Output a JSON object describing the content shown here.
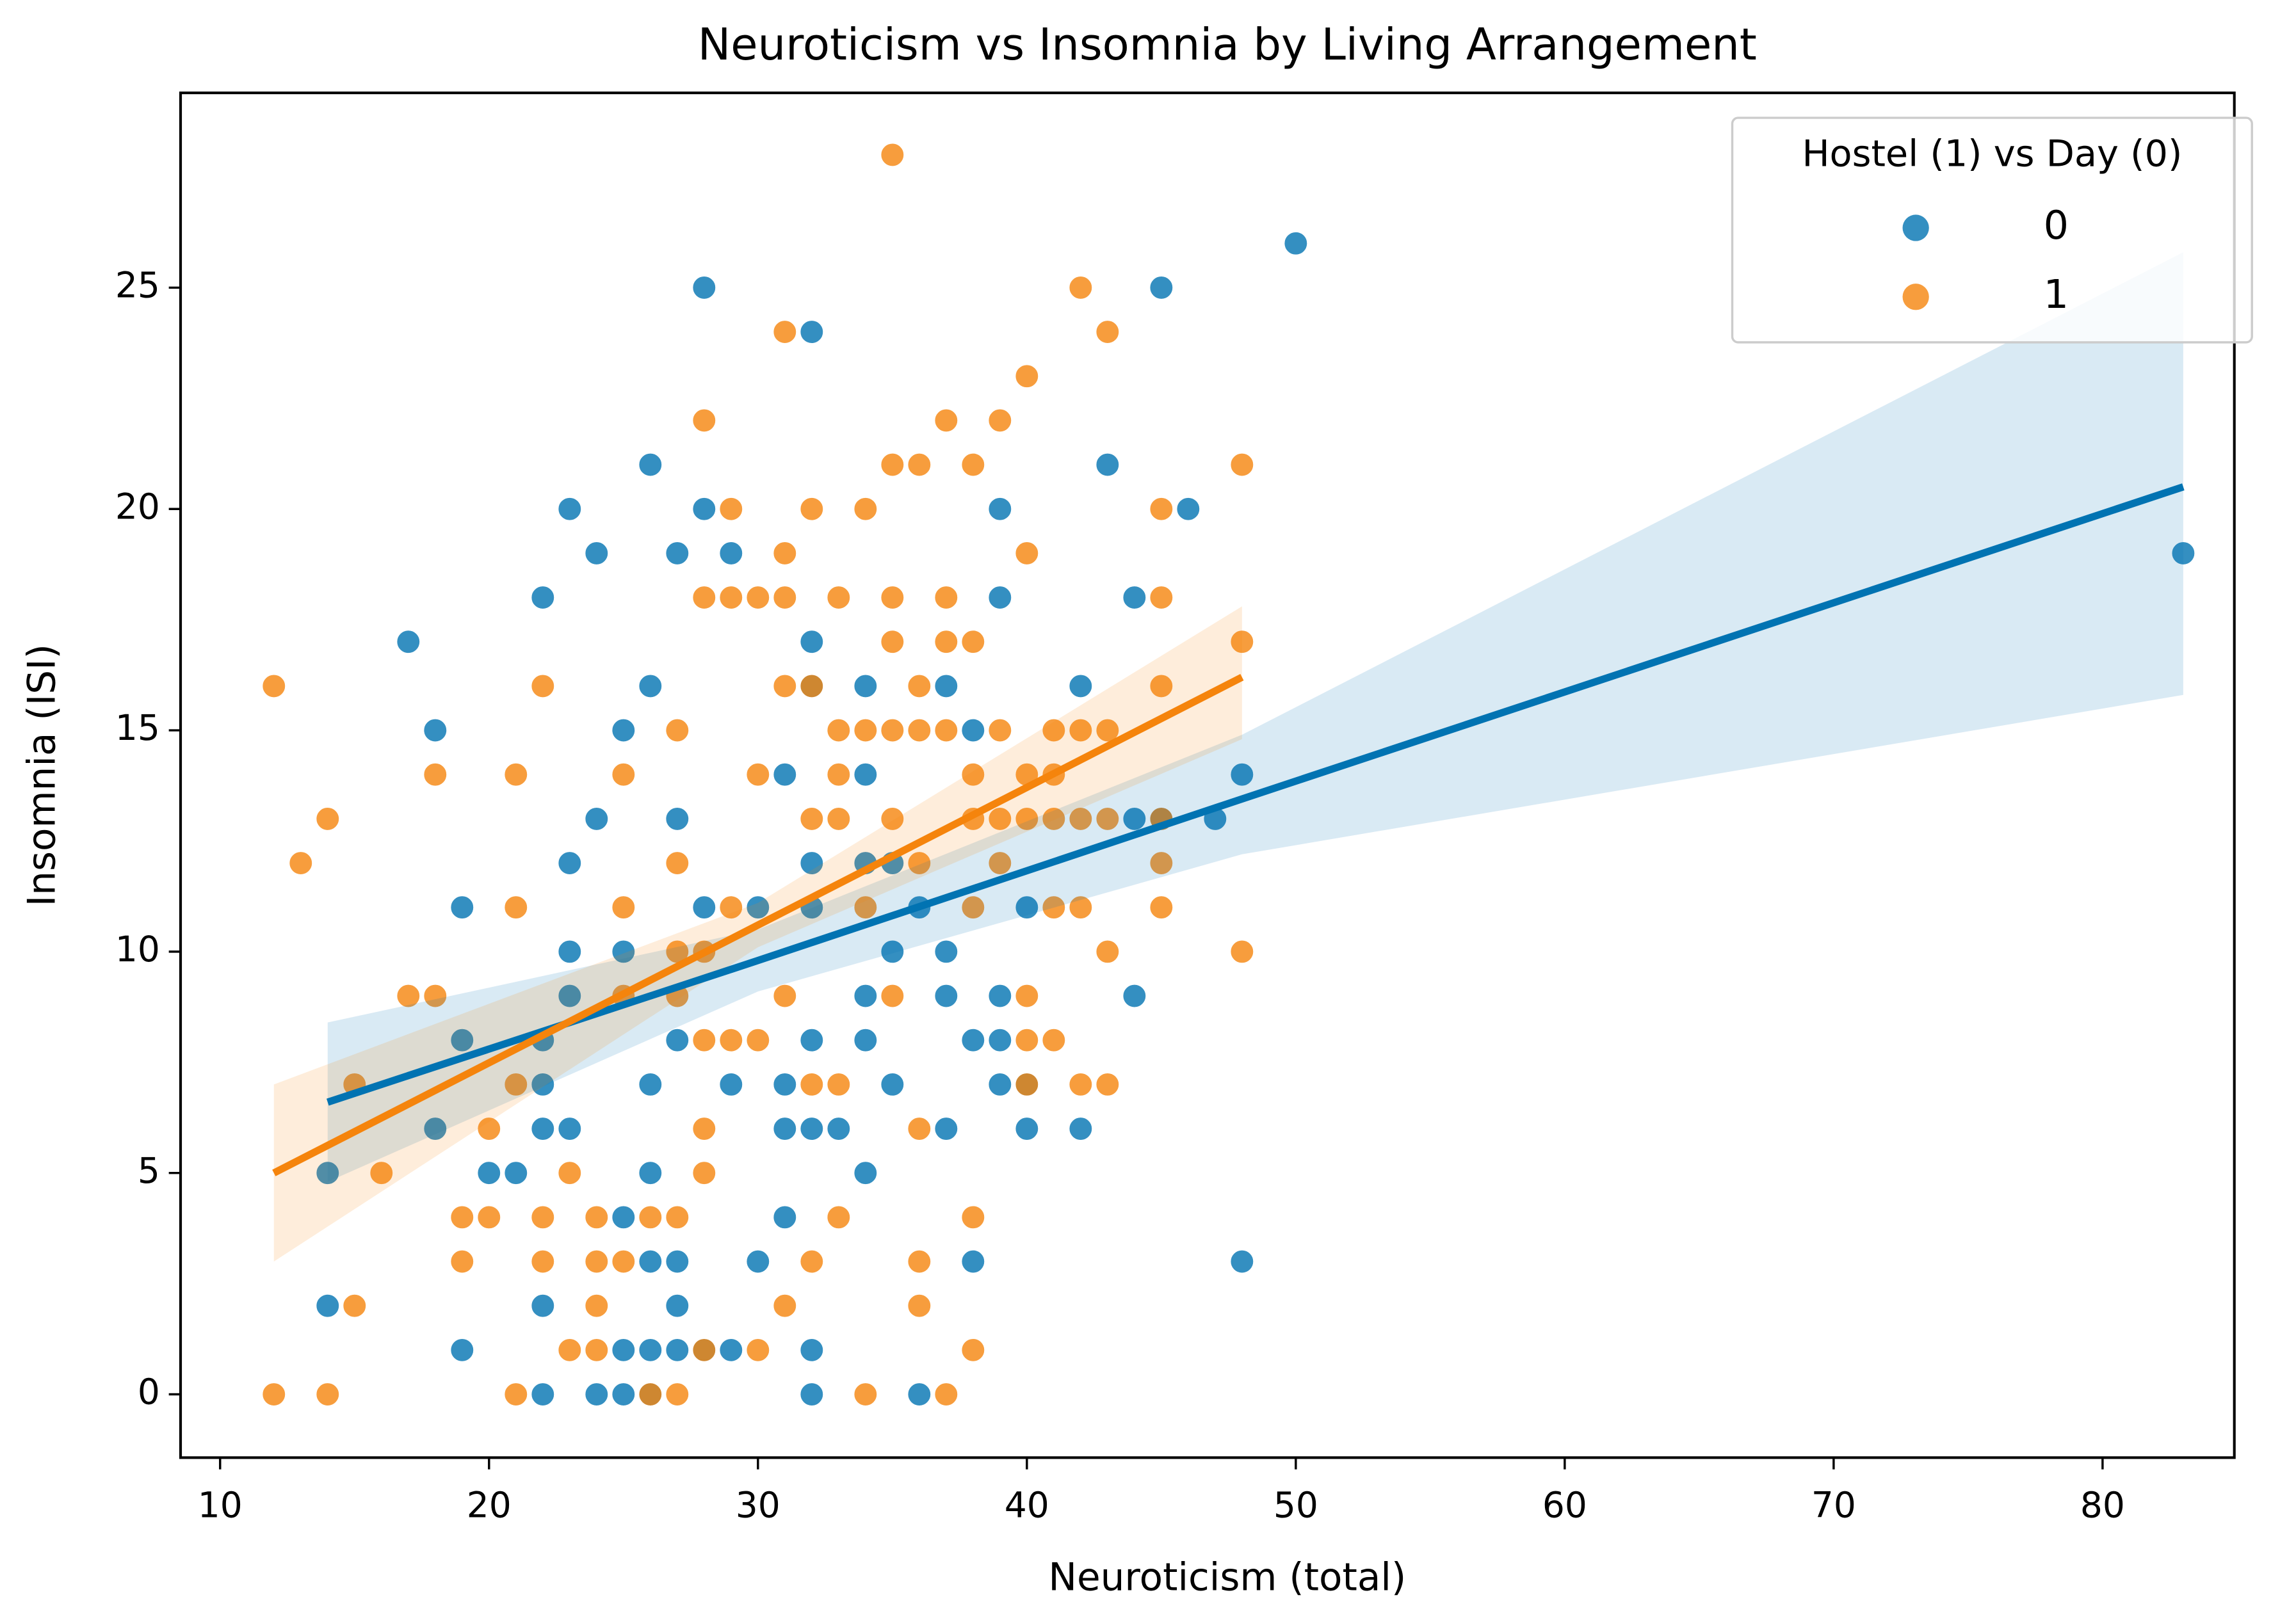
{
  "chart_data": {
    "type": "scatter",
    "title": "Neuroticism vs Insomnia by Living Arrangement",
    "x_label": "Neuroticism (total)",
    "y_label": "Insomnia (ISI)",
    "legend_title": "Hostel (1) vs Day (0)",
    "legend_position": "upper right",
    "xlim": [
      8.53,
      84.9
    ],
    "ylim": [
      -1.43,
      29.4
    ],
    "xticks": [
      10,
      20,
      30,
      40,
      50,
      60,
      70,
      80
    ],
    "yticks": [
      0,
      5,
      10,
      15,
      20,
      25
    ],
    "grid": false,
    "series": [
      {
        "name": "0",
        "color": "#0173b2",
        "x": [
          14,
          14,
          17,
          18,
          18,
          19,
          19,
          19,
          20,
          21,
          22,
          22,
          22,
          22,
          22,
          22,
          23,
          23,
          23,
          23,
          23,
          24,
          24,
          24,
          25,
          25,
          25,
          25,
          25,
          26,
          26,
          26,
          26,
          26,
          26,
          26,
          27,
          27,
          27,
          27,
          27,
          27,
          28,
          28,
          28,
          28,
          29,
          29,
          29,
          30,
          30,
          31,
          31,
          31,
          31,
          32,
          32,
          32,
          32,
          32,
          32,
          32,
          32,
          32,
          33,
          34,
          34,
          34,
          34,
          34,
          34,
          35,
          35,
          35,
          36,
          36,
          37,
          37,
          37,
          37,
          38,
          38,
          38,
          39,
          39,
          39,
          39,
          39,
          40,
          40,
          40,
          42,
          42,
          43,
          44,
          44,
          44,
          45,
          45,
          46,
          47,
          48,
          48,
          50,
          83
        ],
        "values": [
          5,
          2,
          17,
          15,
          6,
          11,
          8,
          1,
          5,
          5,
          18,
          8,
          7,
          6,
          2,
          0,
          20,
          12,
          10,
          9,
          6,
          19,
          13,
          0,
          15,
          10,
          4,
          1,
          0,
          21,
          16,
          7,
          5,
          3,
          1,
          0,
          19,
          13,
          8,
          3,
          2,
          1,
          25,
          20,
          11,
          1,
          19,
          7,
          1,
          11,
          3,
          14,
          7,
          6,
          4,
          24,
          17,
          16,
          12,
          11,
          8,
          6,
          1,
          0,
          6,
          16,
          14,
          12,
          9,
          8,
          5,
          12,
          10,
          7,
          11,
          0,
          16,
          10,
          9,
          6,
          15,
          8,
          3,
          20,
          18,
          9,
          8,
          7,
          11,
          6,
          7,
          16,
          6,
          21,
          18,
          13,
          9,
          25,
          13,
          20,
          13,
          14,
          3,
          26,
          19
        ],
        "fit": {
          "x": [
            14,
            30,
            48,
            83
          ],
          "y": [
            6.6,
            9.8,
            13.45,
            20.5
          ],
          "lower": [
            4.8,
            9.1,
            12.2,
            15.8
          ],
          "upper": [
            8.4,
            10.5,
            14.9,
            25.8
          ]
        }
      },
      {
        "name": "1",
        "color": "#f5840c",
        "x": [
          12,
          12,
          13,
          14,
          14,
          15,
          15,
          16,
          17,
          18,
          18,
          19,
          19,
          20,
          20,
          21,
          21,
          21,
          21,
          22,
          22,
          22,
          23,
          23,
          24,
          24,
          24,
          24,
          25,
          25,
          25,
          25,
          26,
          26,
          27,
          27,
          27,
          27,
          27,
          27,
          28,
          28,
          28,
          28,
          28,
          28,
          28,
          29,
          29,
          29,
          29,
          30,
          30,
          30,
          30,
          31,
          31,
          31,
          31,
          31,
          31,
          32,
          32,
          32,
          32,
          32,
          33,
          33,
          33,
          33,
          33,
          33,
          34,
          34,
          34,
          34,
          35,
          35,
          35,
          35,
          35,
          35,
          35,
          36,
          36,
          36,
          36,
          36,
          36,
          36,
          37,
          37,
          37,
          37,
          37,
          38,
          38,
          38,
          38,
          38,
          38,
          38,
          39,
          39,
          39,
          39,
          40,
          40,
          40,
          40,
          40,
          40,
          40,
          41,
          41,
          41,
          41,
          41,
          42,
          42,
          42,
          42,
          42,
          43,
          43,
          43,
          43,
          43,
          45,
          45,
          45,
          45,
          45,
          45,
          48,
          48,
          48
        ],
        "values": [
          16,
          0,
          12,
          13,
          0,
          7,
          2,
          5,
          9,
          14,
          9,
          4,
          3,
          6,
          4,
          14,
          11,
          7,
          0,
          16,
          4,
          3,
          5,
          1,
          4,
          3,
          2,
          1,
          14,
          11,
          9,
          3,
          4,
          0,
          15,
          12,
          10,
          9,
          4,
          0,
          22,
          18,
          10,
          8,
          6,
          5,
          1,
          20,
          18,
          11,
          8,
          18,
          14,
          8,
          1,
          24,
          19,
          18,
          16,
          9,
          2,
          20,
          16,
          13,
          7,
          3,
          18,
          15,
          14,
          13,
          7,
          4,
          20,
          15,
          11,
          0,
          28,
          21,
          18,
          17,
          15,
          13,
          9,
          21,
          16,
          15,
          12,
          6,
          3,
          2,
          22,
          18,
          17,
          15,
          0,
          21,
          17,
          14,
          13,
          11,
          4,
          1,
          22,
          15,
          13,
          12,
          23,
          19,
          14,
          13,
          9,
          8,
          7,
          15,
          14,
          13,
          11,
          8,
          25,
          15,
          13,
          11,
          7,
          24,
          15,
          13,
          10,
          7,
          20,
          18,
          16,
          13,
          12,
          11,
          21,
          17,
          10
        ],
        "fit": {
          "x": [
            12,
            30,
            48
          ],
          "y": [
            5.0,
            10.6,
            16.2
          ],
          "lower": [
            3.0,
            10.1,
            14.8
          ],
          "upper": [
            7.0,
            11.1,
            17.8
          ]
        }
      }
    ]
  }
}
